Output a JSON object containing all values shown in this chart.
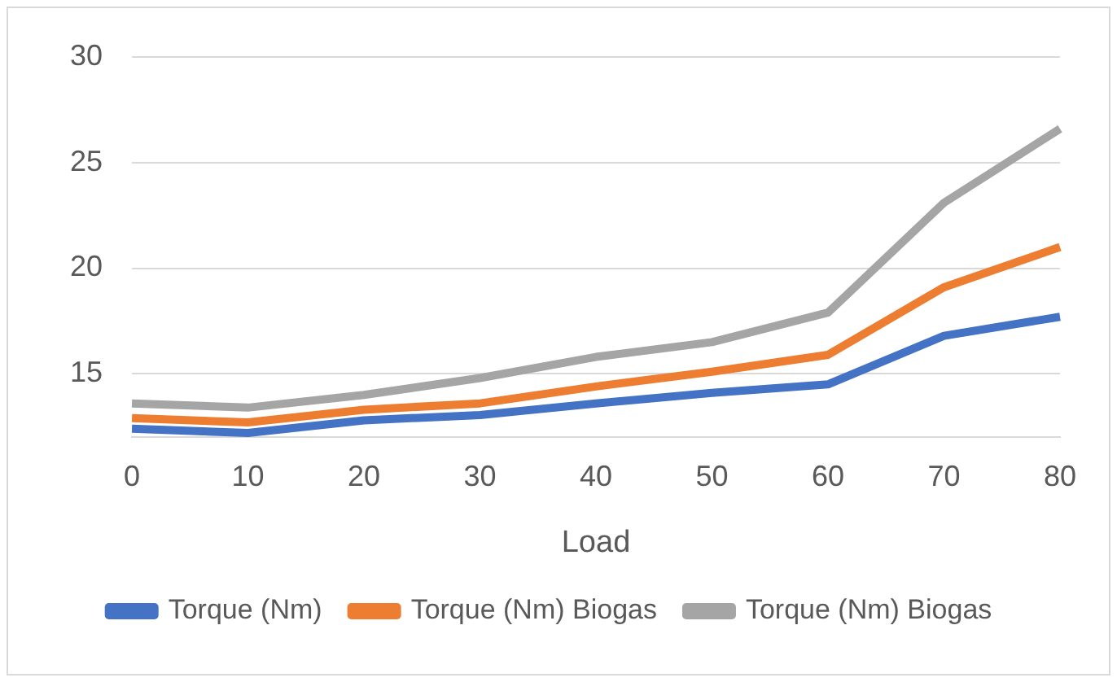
{
  "chart_data": {
    "type": "line",
    "xlabel": "Load",
    "categories": [
      "0",
      "10",
      "20",
      "30",
      "40",
      "50",
      "60",
      "70",
      "80"
    ],
    "series": [
      {
        "name": "Torque (Nm)",
        "color": "#4472c4",
        "values": [
          12.4,
          12.2,
          12.8,
          13.05,
          13.6,
          14.1,
          14.5,
          16.8,
          17.7
        ]
      },
      {
        "name": "Torque (Nm) Biogas",
        "color": "#ed7d31",
        "values": [
          12.9,
          12.7,
          13.3,
          13.6,
          14.4,
          15.1,
          15.9,
          19.1,
          21.0
        ]
      },
      {
        "name": "Torque (Nm) Biogas",
        "color": "#a5a5a5",
        "values": [
          13.6,
          13.4,
          14.0,
          14.8,
          15.8,
          16.5,
          17.9,
          23.1,
          26.6
        ]
      }
    ],
    "ylim": [
      12,
      30
    ],
    "yticks": [
      15,
      20,
      25,
      30
    ],
    "grid": "y",
    "legend": "bottom",
    "marker": "none",
    "line_style": "solid"
  }
}
